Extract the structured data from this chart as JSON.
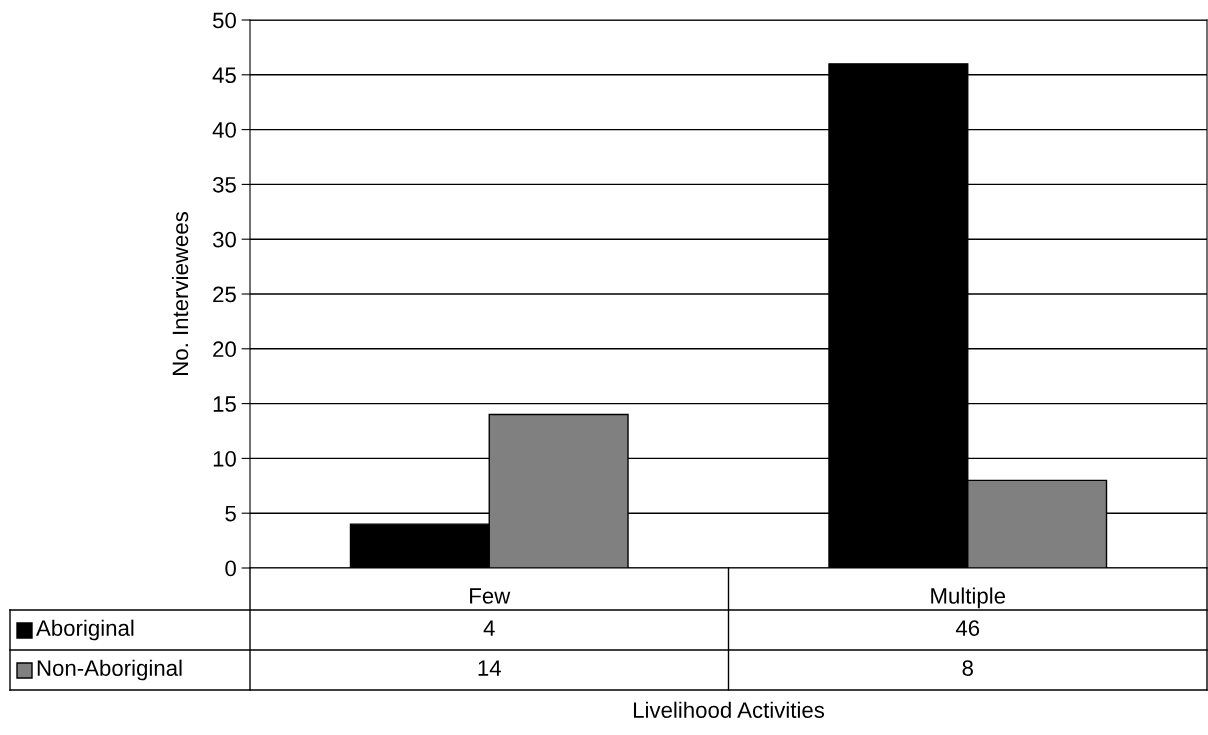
{
  "chart_data": {
    "type": "bar",
    "xlabel": "Livelihood Activities",
    "ylabel": "No. Interviewees",
    "categories": [
      "Few",
      "Multiple"
    ],
    "series": [
      {
        "name": "Aboriginal",
        "color": "#000000",
        "values": [
          4,
          46
        ]
      },
      {
        "name": "Non-Aboriginal",
        "color": "#808080",
        "values": [
          14,
          8
        ]
      }
    ],
    "ylim": [
      0,
      50
    ],
    "yticks": [
      0,
      5,
      10,
      15,
      20,
      25,
      30,
      35,
      40,
      45,
      50
    ],
    "grid": "y",
    "data_labels": true,
    "legend": "bottom left"
  }
}
